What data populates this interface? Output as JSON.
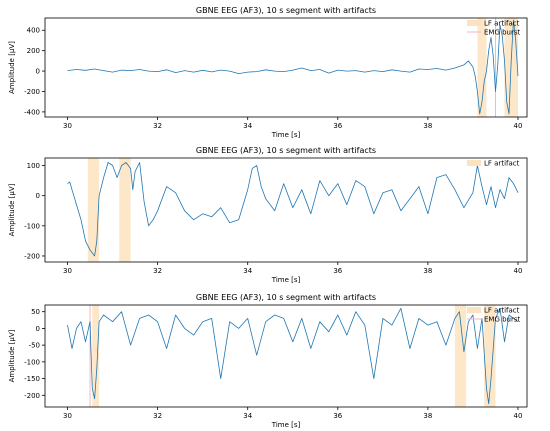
{
  "colors": {
    "signal": "#1f77b4",
    "lf_artifact": "#fbe3c0",
    "emg_burst": "#f4b6c2",
    "axes": "#000000",
    "background": "#ffffff"
  },
  "chart_data": [
    {
      "type": "line",
      "title": "GBNE EEG (AF3), 10 s segment with artifacts",
      "xlabel": "Time [s]",
      "ylabel": "Amplitude  [μV]",
      "xlim": [
        29.5,
        40.2
      ],
      "ylim": [
        -450,
        520
      ],
      "xticks": [
        30,
        32,
        34,
        36,
        38,
        40
      ],
      "yticks": [
        -400,
        -200,
        0,
        200,
        400
      ],
      "grid": false,
      "legend": {
        "placement": "top-right",
        "entries": [
          "LF artifact",
          "EMG burst"
        ]
      },
      "lf_artifact_spans": [
        [
          39.1,
          39.3
        ],
        [
          39.7,
          40.0
        ]
      ],
      "emg_burst_lines": [
        39.5
      ],
      "series": [
        {
          "x": [
            30.0,
            30.2,
            30.4,
            30.6,
            30.8,
            31.0,
            31.2,
            31.4,
            31.6,
            31.8,
            32.0,
            32.2,
            32.4,
            32.6,
            32.8,
            33.0,
            33.2,
            33.4,
            33.6,
            33.8,
            34.0,
            34.2,
            34.4,
            34.6,
            34.8,
            35.0,
            35.2,
            35.4,
            35.6,
            35.8,
            36.0,
            36.2,
            36.4,
            36.6,
            36.8,
            37.0,
            37.2,
            37.4,
            37.6,
            37.8,
            38.0,
            38.2,
            38.4,
            38.6,
            38.8,
            38.9,
            39.0,
            39.05,
            39.1,
            39.15,
            39.2,
            39.25,
            39.3,
            39.35,
            39.4,
            39.45,
            39.5,
            39.55,
            39.6,
            39.65,
            39.7,
            39.75,
            39.8,
            39.85,
            39.9,
            39.95,
            40.0
          ],
          "y": [
            5,
            15,
            8,
            20,
            5,
            -10,
            10,
            5,
            15,
            0,
            -5,
            12,
            -15,
            5,
            -10,
            8,
            -8,
            10,
            0,
            -25,
            -10,
            -5,
            12,
            0,
            -5,
            10,
            30,
            5,
            15,
            -20,
            10,
            0,
            5,
            -10,
            5,
            -5,
            12,
            0,
            -10,
            20,
            15,
            25,
            10,
            30,
            60,
            100,
            40,
            -50,
            -200,
            -420,
            -300,
            -100,
            0,
            200,
            330,
            150,
            -200,
            50,
            450,
            350,
            100,
            -300,
            -420,
            100,
            500,
            300,
            -50
          ]
        }
      ]
    },
    {
      "type": "line",
      "title": "GBNE EEG (AF3), 10 s segment with artifacts",
      "xlabel": "Time [s]",
      "ylabel": "Amplitude  [μV]",
      "xlim": [
        29.5,
        40.2
      ],
      "ylim": [
        -220,
        125
      ],
      "xticks": [
        30,
        32,
        34,
        36,
        38,
        40
      ],
      "yticks": [
        -200,
        -100,
        0,
        100
      ],
      "grid": false,
      "legend": {
        "placement": "top-right",
        "entries": [
          "LF artifact"
        ]
      },
      "lf_artifact_spans": [
        [
          30.45,
          30.7
        ],
        [
          31.15,
          31.4
        ]
      ],
      "emg_burst_lines": [],
      "series": [
        {
          "x": [
            30.0,
            30.05,
            30.1,
            30.2,
            30.3,
            30.4,
            30.5,
            30.6,
            30.65,
            30.7,
            30.8,
            30.9,
            31.0,
            31.1,
            31.2,
            31.3,
            31.4,
            31.45,
            31.5,
            31.6,
            31.7,
            31.8,
            31.9,
            32.0,
            32.2,
            32.4,
            32.6,
            32.8,
            33.0,
            33.2,
            33.4,
            33.6,
            33.8,
            34.0,
            34.1,
            34.2,
            34.3,
            34.4,
            34.6,
            34.8,
            35.0,
            35.2,
            35.4,
            35.6,
            35.8,
            36.0,
            36.2,
            36.4,
            36.6,
            36.8,
            37.0,
            37.2,
            37.4,
            37.6,
            37.8,
            38.0,
            38.2,
            38.4,
            38.6,
            38.8,
            39.0,
            39.1,
            39.2,
            39.3,
            39.4,
            39.5,
            39.6,
            39.7,
            39.8,
            39.9,
            40.0
          ],
          "y": [
            40,
            45,
            20,
            -30,
            -80,
            -150,
            -180,
            -200,
            -150,
            0,
            60,
            110,
            100,
            60,
            100,
            110,
            90,
            20,
            80,
            110,
            -20,
            -100,
            -80,
            -50,
            30,
            10,
            -50,
            -80,
            -60,
            -70,
            -40,
            -90,
            -80,
            20,
            90,
            100,
            30,
            -10,
            -50,
            40,
            -40,
            20,
            -60,
            50,
            0,
            40,
            -30,
            50,
            30,
            -60,
            10,
            20,
            -50,
            -10,
            30,
            -60,
            60,
            70,
            20,
            -40,
            10,
            100,
            30,
            -30,
            30,
            -40,
            20,
            -10,
            60,
            40,
            10
          ]
        }
      ]
    },
    {
      "type": "line",
      "title": "GBNE EEG (AF3), 10 s segment with artifacts",
      "xlabel": "Time [s]",
      "ylabel": "Amplitude  [μV]",
      "xlim": [
        29.5,
        40.2
      ],
      "ylim": [
        -235,
        70
      ],
      "xticks": [
        30,
        32,
        34,
        36,
        38,
        40
      ],
      "yticks": [
        -200,
        -150,
        -100,
        -50,
        0,
        50
      ],
      "grid": false,
      "legend": {
        "placement": "top-right",
        "entries": [
          "LF artifact",
          "EMG burst"
        ]
      },
      "lf_artifact_spans": [
        [
          30.55,
          30.7
        ],
        [
          38.6,
          38.85
        ],
        [
          39.25,
          39.5
        ]
      ],
      "emg_burst_lines": [
        30.5
      ],
      "series": [
        {
          "x": [
            30.0,
            30.1,
            30.2,
            30.3,
            30.4,
            30.5,
            30.55,
            30.6,
            30.65,
            30.7,
            30.8,
            31.0,
            31.2,
            31.4,
            31.6,
            31.8,
            32.0,
            32.2,
            32.4,
            32.6,
            32.8,
            33.0,
            33.2,
            33.4,
            33.6,
            33.8,
            34.0,
            34.2,
            34.4,
            34.6,
            34.8,
            35.0,
            35.2,
            35.4,
            35.6,
            35.8,
            36.0,
            36.2,
            36.4,
            36.6,
            36.8,
            37.0,
            37.2,
            37.4,
            37.6,
            37.8,
            38.0,
            38.2,
            38.4,
            38.6,
            38.7,
            38.8,
            38.9,
            39.0,
            39.1,
            39.2,
            39.3,
            39.35,
            39.4,
            39.5,
            39.6,
            39.7,
            39.8,
            39.9,
            40.0
          ],
          "y": [
            10,
            -60,
            0,
            20,
            -40,
            20,
            -180,
            -210,
            -120,
            20,
            40,
            20,
            50,
            -50,
            30,
            40,
            20,
            -60,
            40,
            0,
            -20,
            20,
            30,
            -150,
            20,
            0,
            30,
            -80,
            20,
            40,
            30,
            -40,
            30,
            -60,
            20,
            -10,
            40,
            -20,
            50,
            10,
            -150,
            30,
            10,
            60,
            -60,
            30,
            10,
            20,
            -50,
            30,
            50,
            -70,
            20,
            40,
            -60,
            30,
            -180,
            -225,
            -150,
            30,
            60,
            -40,
            40,
            30,
            20
          ]
        }
      ]
    }
  ]
}
